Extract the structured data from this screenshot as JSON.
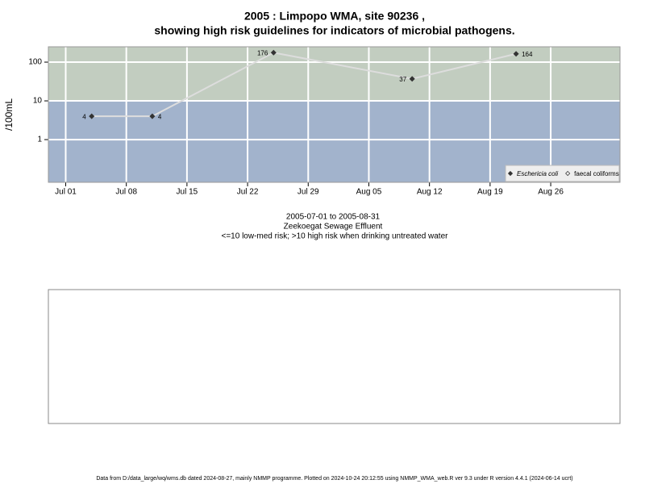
{
  "chart_data": {
    "type": "line",
    "title": [
      "2005 : Limpopo WMA, site 90236 ,",
      "showing high risk guidelines for indicators of microbial pathogens."
    ],
    "y_label": "/100mL",
    "x": [
      "2005-07-04",
      "2005-07-11",
      "2005-07-25",
      "2005-08-10",
      "2005-08-22"
    ],
    "series": [
      {
        "name": "Eschericia coli",
        "color": "#333333",
        "line_color": "#dddddd",
        "values": [
          4,
          4,
          176,
          37,
          164
        ]
      },
      {
        "name": "faecal coliforms",
        "color": "#333333",
        "values": [
          null,
          null,
          null,
          null,
          null
        ]
      }
    ],
    "xlim": [
      "2005-06-29",
      "2005-09-03"
    ],
    "xticks": [
      {
        "value": "2005-07-01",
        "label": "Jul 01"
      },
      {
        "value": "2005-07-08",
        "label": "Jul 08"
      },
      {
        "value": "2005-07-15",
        "label": "Jul 15"
      },
      {
        "value": "2005-07-22",
        "label": "Jul 22"
      },
      {
        "value": "2005-07-29",
        "label": "Jul 29"
      },
      {
        "value": "2005-08-05",
        "label": "Aug 05"
      },
      {
        "value": "2005-08-12",
        "label": "Aug 12"
      },
      {
        "value": "2005-08-19",
        "label": "Aug 19"
      },
      {
        "value": "2005-08-26",
        "label": "Aug 26"
      }
    ],
    "ylim": [
      0.079,
      249
    ],
    "yticks": [
      1,
      10,
      100
    ],
    "log_y": true,
    "grid": true,
    "risk_threshold": 10,
    "high_risk_color": "#c2cdc0",
    "low_risk_color": "#a2b3cc",
    "legend_position": "bottom-right",
    "notes": [
      "2005-07-01 to 2005-08-31",
      "Zeekoegat Sewage Effluent",
      "<=10 low-med risk; >10 high risk when drinking untreated water"
    ],
    "footer": "Data from D:/data_large/wq/wms.db dated 2024-08-27, mainly NMMP programme. Plotted on 2024-10-24 20:12:55 using NMMP_WMA_web.R ver 9.3 under R version 4.4.1 (2024-06-14 ucrt)"
  }
}
